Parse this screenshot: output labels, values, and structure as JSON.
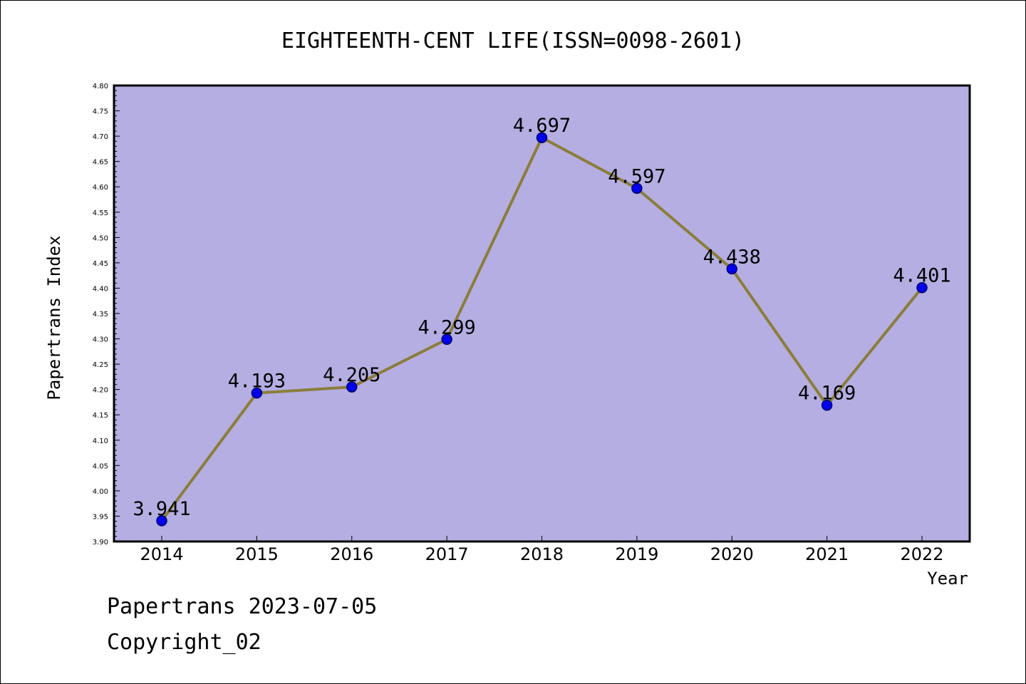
{
  "chart_data": {
    "type": "line",
    "title": "EIGHTEENTH-CENT LIFE(ISSN=0098-2601)",
    "xlabel": "Year",
    "ylabel": "Papertrans Index",
    "x": [
      "2014",
      "2015",
      "2016",
      "2017",
      "2018",
      "2019",
      "2020",
      "2021",
      "2022"
    ],
    "series": [
      {
        "values": [
          3.941,
          4.193,
          4.205,
          4.299,
          4.697,
          4.597,
          4.438,
          4.169,
          4.401
        ],
        "labels": [
          "3.941",
          "4.193",
          "4.205",
          "4.299",
          "4.697",
          "4.597",
          "4.438",
          "4.169",
          "4.401"
        ]
      }
    ],
    "ylim": [
      3.9,
      4.8
    ],
    "yticks": [
      "3.90",
      "3.95",
      "4.00",
      "4.05",
      "4.10",
      "4.15",
      "4.20",
      "4.25",
      "4.30",
      "4.35",
      "4.40",
      "4.45",
      "4.50",
      "4.55",
      "4.60",
      "4.65",
      "4.70",
      "4.75",
      "4.80"
    ],
    "grid": false,
    "colors": {
      "plot_background": "#b4aee2",
      "line": "#8b7d3a",
      "marker": "#0000ee",
      "marker_edge": "#000066"
    }
  },
  "footer": {
    "line1": "Papertrans 2023-07-05",
    "line2": "Copyright_02"
  }
}
